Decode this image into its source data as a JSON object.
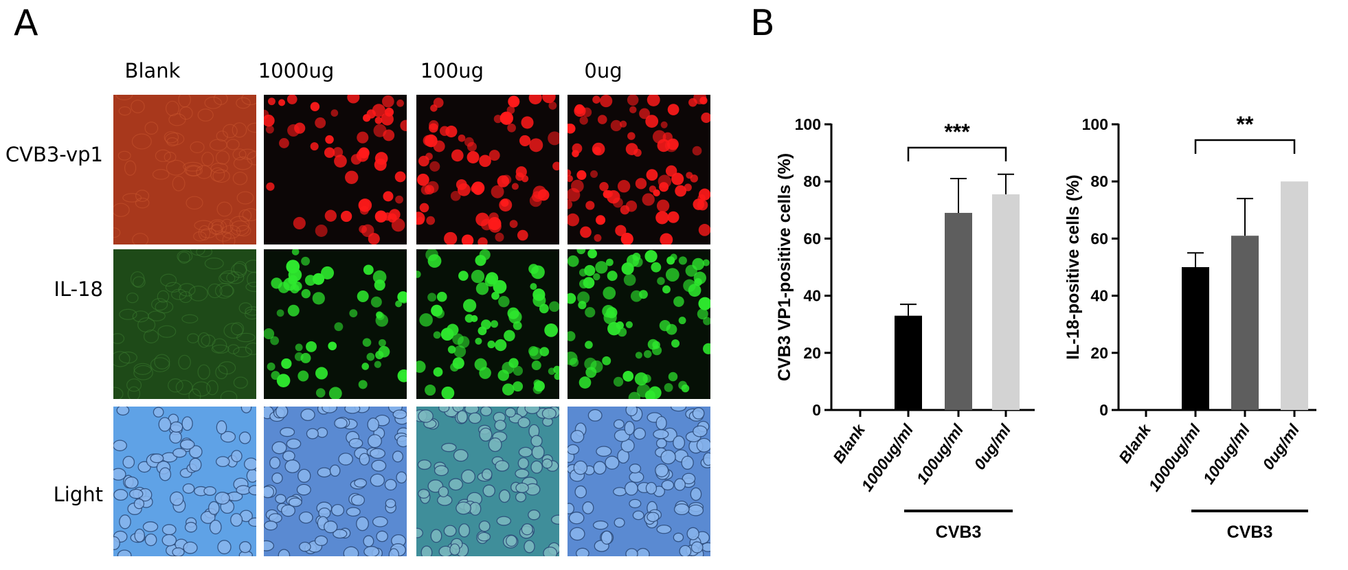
{
  "panel_a": {
    "letter": "A",
    "columns": [
      "Blank",
      "1000ug",
      "100ug",
      "0ug"
    ],
    "rows": [
      "CVB3-vp1",
      "IL-18",
      "Light"
    ]
  },
  "panel_b": {
    "letter": "B"
  },
  "colors": {
    "red_stain": "#ff1a1a",
    "green_stain": "#2ee82e",
    "light_bg": "#5b95d8",
    "bar_blank": "#000000",
    "bar_1000": "#000000",
    "bar_100": "#5e5e5e",
    "bar_0": "#d3d3d3"
  },
  "chart_data": [
    {
      "type": "bar",
      "title": "",
      "ylabel": "CVB3 VP1-positive cells (%)",
      "ylim": [
        0,
        100
      ],
      "yticks": [
        "0",
        "20",
        "40",
        "60",
        "80",
        "100"
      ],
      "categories": [
        "Blank",
        "1000ug/ml",
        "100ug/ml",
        "0ug/ml"
      ],
      "values": [
        0,
        33,
        69,
        75.5
      ],
      "errors": [
        0,
        4,
        12,
        7
      ],
      "group_label": "CVB3",
      "significance": "***"
    },
    {
      "type": "bar",
      "title": "",
      "ylabel": "IL-18-positive cells (%)",
      "ylim": [
        0,
        100
      ],
      "yticks": [
        "0",
        "20",
        "40",
        "60",
        "80",
        "100"
      ],
      "categories": [
        "Blank",
        "1000ug/ml",
        "100ug/ml",
        "0ug/ml"
      ],
      "values": [
        0,
        50,
        61,
        80
      ],
      "errors": [
        0,
        5,
        13,
        0
      ],
      "group_label": "CVB3",
      "significance": "**"
    }
  ]
}
